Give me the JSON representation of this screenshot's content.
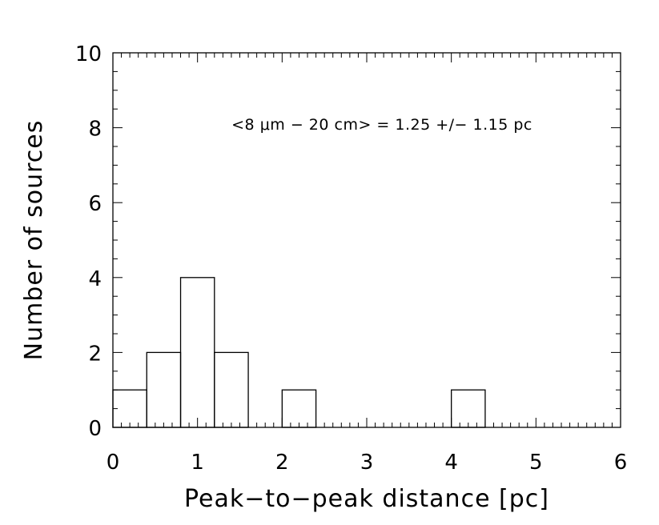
{
  "chart_data": {
    "type": "bar",
    "subtype": "histogram",
    "bin_width": 0.4,
    "bins": [
      {
        "x0": 0.0,
        "x1": 0.4,
        "count": 1
      },
      {
        "x0": 0.4,
        "x1": 0.8,
        "count": 2
      },
      {
        "x0": 0.8,
        "x1": 1.2,
        "count": 4
      },
      {
        "x0": 1.2,
        "x1": 1.6,
        "count": 2
      },
      {
        "x0": 1.6,
        "x1": 2.0,
        "count": 0
      },
      {
        "x0": 2.0,
        "x1": 2.4,
        "count": 1
      },
      {
        "x0": 2.4,
        "x1": 2.8,
        "count": 0
      },
      {
        "x0": 2.8,
        "x1": 3.2,
        "count": 0
      },
      {
        "x0": 3.2,
        "x1": 3.6,
        "count": 0
      },
      {
        "x0": 3.6,
        "x1": 4.0,
        "count": 0
      },
      {
        "x0": 4.0,
        "x1": 4.4,
        "count": 1
      },
      {
        "x0": 4.4,
        "x1": 4.8,
        "count": 0
      },
      {
        "x0": 4.8,
        "x1": 5.2,
        "count": 0
      },
      {
        "x0": 5.2,
        "x1": 5.6,
        "count": 0
      },
      {
        "x0": 5.6,
        "x1": 6.0,
        "count": 0
      }
    ],
    "xlabel": "Peak−to−peak distance [pc]",
    "ylabel": "Number of sources",
    "xlim": [
      0,
      6
    ],
    "ylim": [
      0,
      10
    ],
    "xticks": [
      "0",
      "1",
      "2",
      "3",
      "4",
      "5",
      "6"
    ],
    "yticks": [
      "0",
      "2",
      "4",
      "6",
      "8",
      "10"
    ],
    "annotation": "<8 μm − 20 cm> = 1.25 +/− 1.15 pc",
    "grid": false,
    "legend": "none"
  }
}
